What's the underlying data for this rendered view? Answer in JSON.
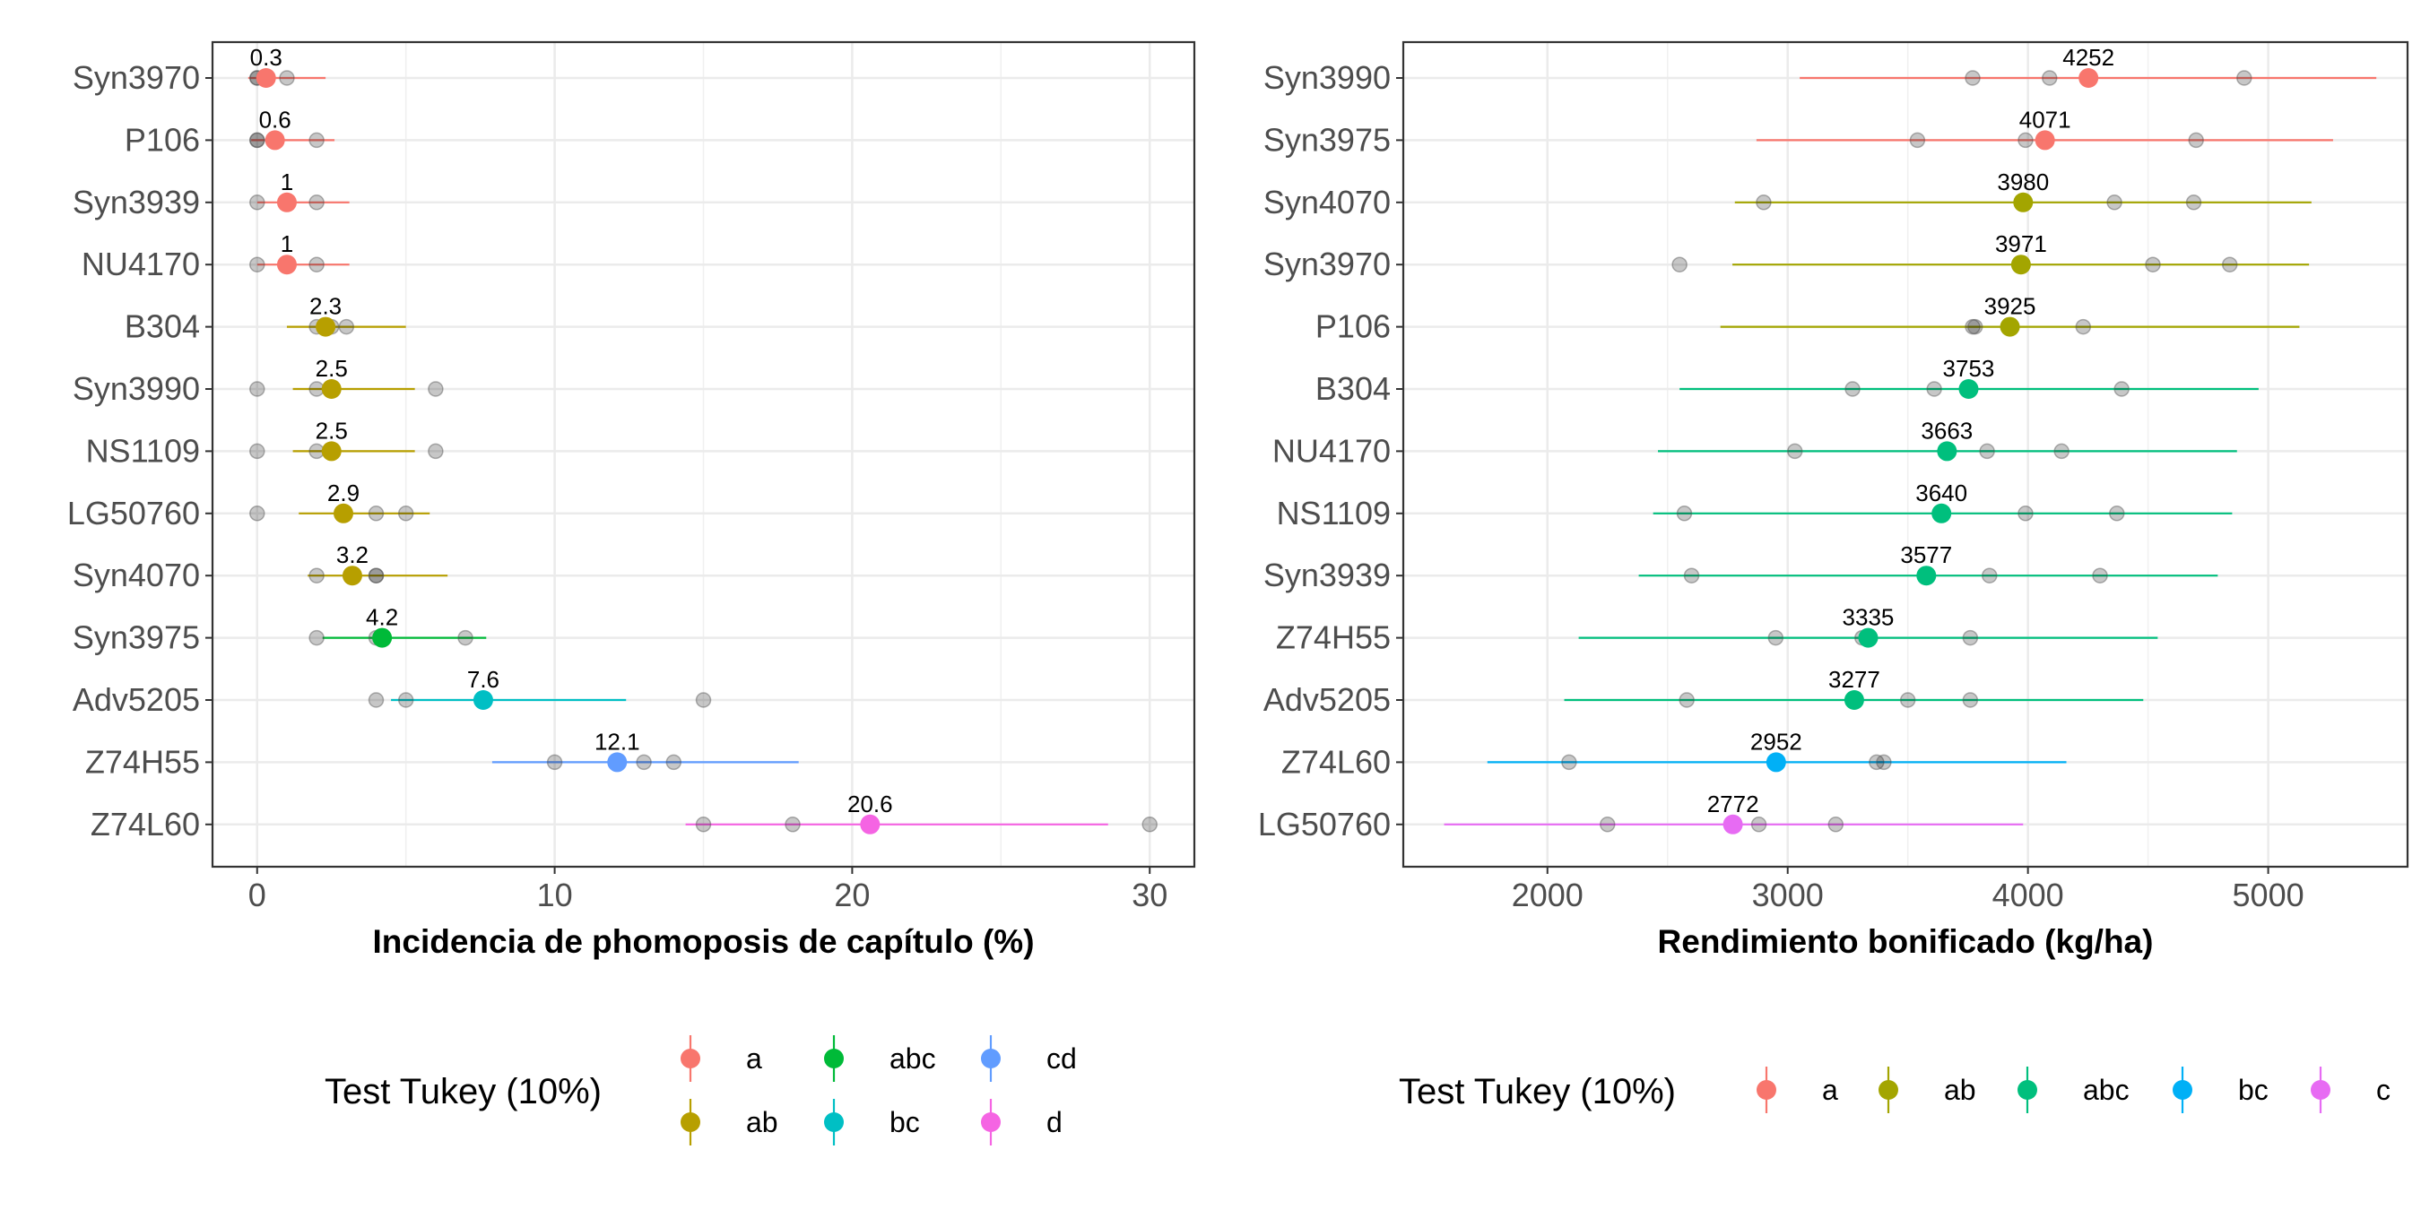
{
  "chart_data": [
    {
      "type": "scatter",
      "xlabel": "Incidencia de phomoposis de capítulo (%)",
      "xlim": [
        -1.5,
        31.5
      ],
      "xticks": [
        0,
        10,
        20,
        30
      ],
      "grid": true,
      "legend": {
        "title": "Test Tukey (10%)",
        "placement": "bottom",
        "entries": [
          {
            "label": "a",
            "color": "#F8766D"
          },
          {
            "label": "ab",
            "color": "#B79F00"
          },
          {
            "label": "abc",
            "color": "#00BA38"
          },
          {
            "label": "bc",
            "color": "#00BFC4"
          },
          {
            "label": "cd",
            "color": "#619CFF"
          },
          {
            "label": "d",
            "color": "#F564E3"
          }
        ]
      },
      "series": [
        {
          "category": "Syn3970",
          "group": "a",
          "mean": 0.3,
          "mean_label": "0.3",
          "ci": [
            -0.3,
            2.3
          ],
          "reps": [
            0,
            0,
            1
          ]
        },
        {
          "category": "P106",
          "group": "a",
          "mean": 0.6,
          "mean_label": "0.6",
          "ci": [
            -0.2,
            2.6
          ],
          "reps": [
            0,
            0,
            2
          ]
        },
        {
          "category": "Syn3939",
          "group": "a",
          "mean": 1,
          "mean_label": "1",
          "ci": [
            0,
            3.1
          ],
          "reps": [
            0,
            1,
            2
          ]
        },
        {
          "category": "NU4170",
          "group": "a",
          "mean": 1,
          "mean_label": "1",
          "ci": [
            0,
            3.1
          ],
          "reps": [
            0,
            1,
            2
          ]
        },
        {
          "category": "B304",
          "group": "ab",
          "mean": 2.3,
          "mean_label": "2.3",
          "ci": [
            1.0,
            5.0
          ],
          "reps": [
            2,
            2.5,
            3
          ]
        },
        {
          "category": "Syn3990",
          "group": "ab",
          "mean": 2.5,
          "mean_label": "2.5",
          "ci": [
            1.2,
            5.3
          ],
          "reps": [
            0,
            2,
            6
          ]
        },
        {
          "category": "NS1109",
          "group": "ab",
          "mean": 2.5,
          "mean_label": "2.5",
          "ci": [
            1.2,
            5.3
          ],
          "reps": [
            0,
            2,
            6
          ]
        },
        {
          "category": "LG50760",
          "group": "ab",
          "mean": 2.9,
          "mean_label": "2.9",
          "ci": [
            1.4,
            5.8
          ],
          "reps": [
            0,
            4,
            5
          ]
        },
        {
          "category": "Syn4070",
          "group": "ab",
          "mean": 3.2,
          "mean_label": "3.2",
          "ci": [
            1.7,
            6.4
          ],
          "reps": [
            2,
            4,
            4
          ]
        },
        {
          "category": "Syn3975",
          "group": "abc",
          "mean": 4.2,
          "mean_label": "4.2",
          "ci": [
            2.2,
            7.7
          ],
          "reps": [
            2,
            4,
            7
          ]
        },
        {
          "category": "Adv5205",
          "group": "bc",
          "mean": 7.6,
          "mean_label": "7.6",
          "ci": [
            4.5,
            12.4
          ],
          "reps": [
            4,
            5,
            15
          ]
        },
        {
          "category": "Z74H55",
          "group": "cd",
          "mean": 12.1,
          "mean_label": "12.1",
          "ci": [
            7.9,
            18.2
          ],
          "reps": [
            10,
            13,
            14
          ]
        },
        {
          "category": "Z74L60",
          "group": "d",
          "mean": 20.6,
          "mean_label": "20.6",
          "ci": [
            14.4,
            28.6
          ],
          "reps": [
            15,
            18,
            30
          ]
        }
      ]
    },
    {
      "type": "scatter",
      "xlabel": "Rendimiento bonificado (kg/ha)",
      "xlim": [
        1400,
        5580
      ],
      "xticks": [
        2000,
        3000,
        4000,
        5000
      ],
      "grid": true,
      "legend": {
        "title": "Test Tukey (10%)",
        "placement": "bottom",
        "entries": [
          {
            "label": "a",
            "color": "#F8766D"
          },
          {
            "label": "ab",
            "color": "#A3A500"
          },
          {
            "label": "abc",
            "color": "#00BF7D"
          },
          {
            "label": "bc",
            "color": "#00B0F6"
          },
          {
            "label": "c",
            "color": "#E76BF3"
          }
        ]
      },
      "series": [
        {
          "category": "Syn3990",
          "group": "a",
          "mean": 4252,
          "mean_label": "4252",
          "ci": [
            3050,
            5450
          ],
          "reps": [
            3770,
            4090,
            4900
          ]
        },
        {
          "category": "Syn3975",
          "group": "a",
          "mean": 4071,
          "mean_label": "4071",
          "ci": [
            2870,
            5270
          ],
          "reps": [
            3540,
            3990,
            4700
          ]
        },
        {
          "category": "Syn4070",
          "group": "ab",
          "mean": 3980,
          "mean_label": "3980",
          "ci": [
            2780,
            5180
          ],
          "reps": [
            2900,
            4360,
            4690
          ]
        },
        {
          "category": "Syn3970",
          "group": "ab",
          "mean": 3971,
          "mean_label": "3971",
          "ci": [
            2770,
            5170
          ],
          "reps": [
            2550,
            4520,
            4840
          ]
        },
        {
          "category": "P106",
          "group": "ab",
          "mean": 3925,
          "mean_label": "3925",
          "ci": [
            2720,
            5130
          ],
          "reps": [
            3770,
            3780,
            4230
          ]
        },
        {
          "category": "B304",
          "group": "abc",
          "mean": 3753,
          "mean_label": "3753",
          "ci": [
            2550,
            4960
          ],
          "reps": [
            3270,
            3610,
            4390
          ]
        },
        {
          "category": "NU4170",
          "group": "abc",
          "mean": 3663,
          "mean_label": "3663",
          "ci": [
            2460,
            4870
          ],
          "reps": [
            3030,
            3830,
            4140
          ]
        },
        {
          "category": "NS1109",
          "group": "abc",
          "mean": 3640,
          "mean_label": "3640",
          "ci": [
            2440,
            4850
          ],
          "reps": [
            2570,
            3990,
            4370
          ]
        },
        {
          "category": "Syn3939",
          "group": "abc",
          "mean": 3577,
          "mean_label": "3577",
          "ci": [
            2380,
            4790
          ],
          "reps": [
            2600,
            3840,
            4300
          ]
        },
        {
          "category": "Z74H55",
          "group": "abc",
          "mean": 3335,
          "mean_label": "3335",
          "ci": [
            2130,
            4540
          ],
          "reps": [
            2950,
            3310,
            3760
          ]
        },
        {
          "category": "Adv5205",
          "group": "abc",
          "mean": 3277,
          "mean_label": "3277",
          "ci": [
            2070,
            4480
          ],
          "reps": [
            2580,
            3500,
            3760
          ]
        },
        {
          "category": "Z74L60",
          "group": "bc",
          "mean": 2952,
          "mean_label": "2952",
          "ci": [
            1750,
            4160
          ],
          "reps": [
            2090,
            3370,
            3400
          ]
        },
        {
          "category": "LG50760",
          "group": "c",
          "mean": 2772,
          "mean_label": "2772",
          "ci": [
            1570,
            3980
          ],
          "reps": [
            2250,
            2880,
            3200
          ]
        }
      ]
    }
  ]
}
